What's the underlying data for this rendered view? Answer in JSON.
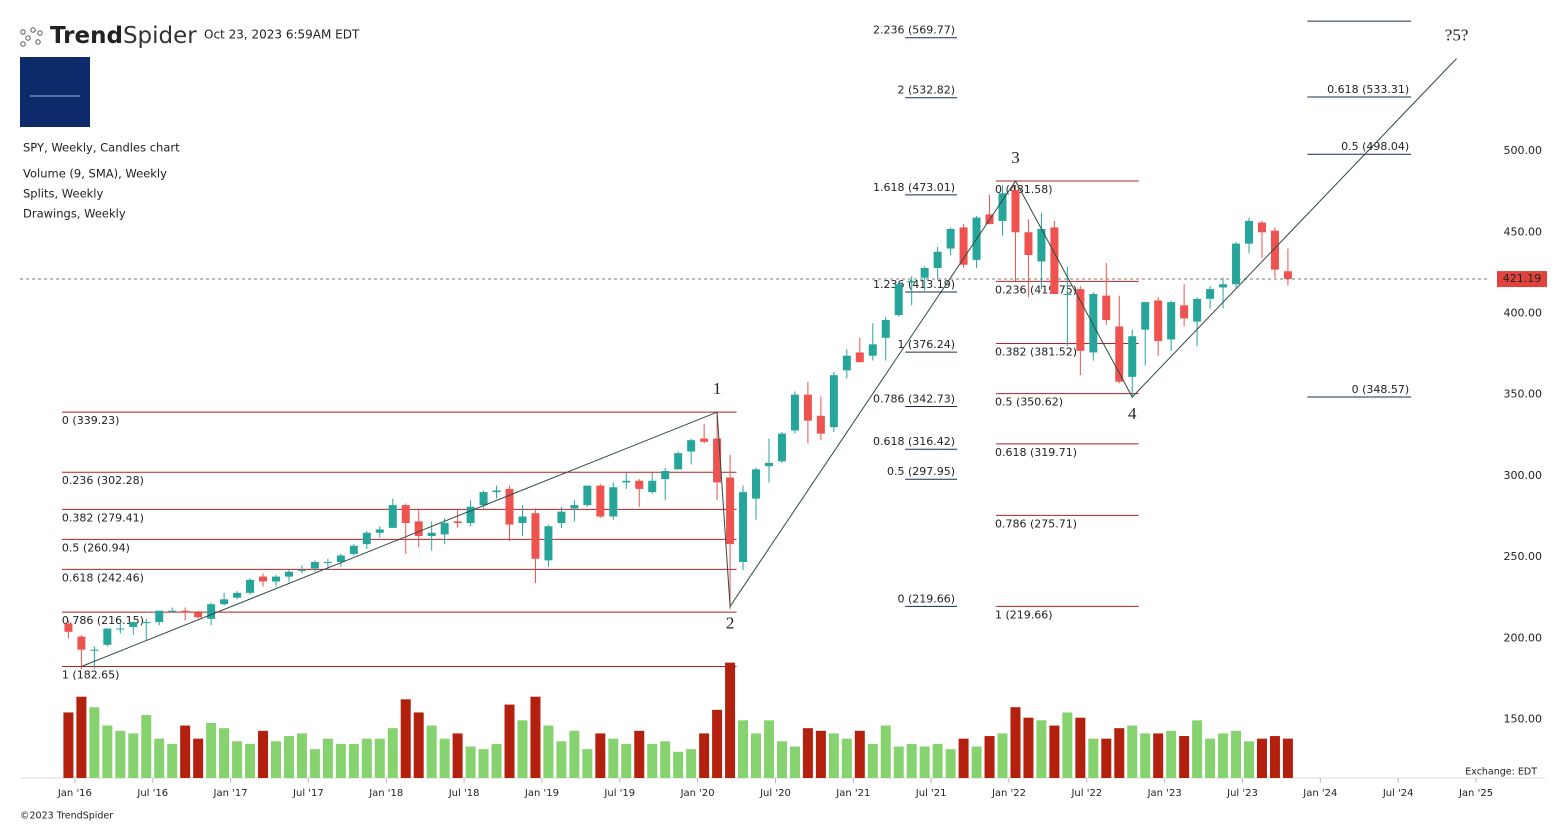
{
  "chart_data": {
    "type": "candlestick",
    "brand": [
      "Trend",
      "Spider"
    ],
    "timestamp": "Oct 23, 2023 6:59AM EDT",
    "title": "SPY, Weekly, Candles chart",
    "indicators": [
      "Volume (9, SMA), Weekly",
      "Splits, Weekly",
      "Drawings, Weekly"
    ],
    "exchange_note": "Exchange: EDT",
    "copyright": "©2023 TrendSpider",
    "up_color": "#26a69a",
    "down_color": "#ef5350",
    "volume_up_color": "#86d26e",
    "volume_down_color": "#b3200e",
    "x": [
      "2015-12",
      "2016-01",
      "2016-02",
      "2016-03",
      "2016-04",
      "2016-05",
      "2016-06",
      "2016-07",
      "2016-08",
      "2016-09",
      "2016-10",
      "2016-11",
      "2016-12",
      "2017-01",
      "2017-02",
      "2017-03",
      "2017-04",
      "2017-05",
      "2017-06",
      "2017-07",
      "2017-08",
      "2017-09",
      "2017-10",
      "2017-11",
      "2017-12",
      "2018-01",
      "2018-02",
      "2018-03",
      "2018-04",
      "2018-05",
      "2018-06",
      "2018-07",
      "2018-08",
      "2018-09",
      "2018-10",
      "2018-11",
      "2018-12",
      "2019-01",
      "2019-02",
      "2019-03",
      "2019-04",
      "2019-05",
      "2019-06",
      "2019-07",
      "2019-08",
      "2019-09",
      "2019-10",
      "2019-11",
      "2019-12",
      "2020-01",
      "2020-02",
      "2020-03",
      "2020-04",
      "2020-05",
      "2020-06",
      "2020-07",
      "2020-08",
      "2020-09",
      "2020-10",
      "2020-11",
      "2020-12",
      "2021-01",
      "2021-02",
      "2021-03",
      "2021-04",
      "2021-05",
      "2021-06",
      "2021-07",
      "2021-08",
      "2021-09",
      "2021-10",
      "2021-11",
      "2021-12",
      "2022-01",
      "2022-02",
      "2022-03",
      "2022-04",
      "2022-05",
      "2022-06",
      "2022-07",
      "2022-08",
      "2022-09",
      "2022-10",
      "2022-11",
      "2022-12",
      "2023-01",
      "2023-02",
      "2023-03",
      "2023-04",
      "2023-05",
      "2023-06",
      "2023-07",
      "2023-08",
      "2023-09",
      "2023-10"
    ],
    "open": [
      209,
      201,
      193,
      196,
      206,
      207,
      210,
      210,
      217,
      217,
      216,
      212,
      221,
      225,
      228,
      238,
      235,
      238,
      242,
      243,
      247,
      247,
      252,
      258,
      265,
      268,
      282,
      272,
      263,
      264,
      272,
      271,
      282,
      290,
      292,
      271,
      277,
      248,
      271,
      280,
      282,
      294,
      275,
      296,
      297,
      290,
      298,
      304,
      315,
      323,
      323,
      299,
      247,
      286,
      306,
      309,
      328,
      350,
      337,
      330,
      365,
      376,
      374,
      385,
      399,
      419,
      422,
      428,
      440,
      453,
      433,
      461,
      457,
      476,
      450,
      432,
      453,
      412,
      415,
      376,
      411,
      392,
      361,
      390,
      408,
      384,
      405,
      395,
      409,
      416,
      418,
      443,
      456,
      451,
      426
    ],
    "high": [
      211,
      202,
      195,
      206,
      210,
      210,
      212,
      217,
      219,
      219,
      217,
      222,
      228,
      229,
      237,
      240,
      239,
      242,
      245,
      248,
      249,
      252,
      258,
      266,
      269,
      286,
      283,
      279,
      272,
      274,
      279,
      285,
      291,
      294,
      294,
      282,
      280,
      270,
      281,
      285,
      294,
      295,
      296,
      302,
      298,
      302,
      305,
      315,
      323,
      332,
      339,
      313,
      294,
      305,
      323,
      327,
      352,
      358,
      349,
      364,
      378,
      385,
      394,
      398,
      420,
      423,
      429,
      441,
      453,
      455,
      460,
      473,
      479,
      479,
      458,
      462,
      457,
      429,
      417,
      413,
      431,
      411,
      390,
      407,
      410,
      408,
      418,
      410,
      417,
      422,
      444,
      459,
      457,
      453,
      440
    ],
    "low": [
      200,
      181,
      181,
      195,
      203,
      202,
      199,
      208,
      216,
      211,
      212,
      208,
      220,
      224,
      227,
      232,
      232,
      235,
      240,
      241,
      242,
      244,
      251,
      255,
      262,
      268,
      252,
      256,
      254,
      258,
      268,
      269,
      280,
      286,
      260,
      263,
      234,
      244,
      268,
      272,
      281,
      274,
      273,
      292,
      281,
      289,
      285,
      304,
      307,
      320,
      285,
      218,
      242,
      273,
      296,
      308,
      326,
      320,
      322,
      327,
      360,
      370,
      371,
      371,
      398,
      405,
      414,
      421,
      436,
      428,
      428,
      455,
      448,
      420,
      410,
      415,
      412,
      380,
      362,
      371,
      393,
      357,
      348,
      368,
      374,
      377,
      392,
      380,
      403,
      403,
      416,
      437,
      434,
      422,
      417
    ],
    "close": [
      204,
      193,
      193,
      206,
      206,
      210,
      210,
      217,
      217,
      216,
      213,
      221,
      224,
      228,
      236,
      235,
      238,
      241,
      242,
      247,
      247,
      251,
      257,
      265,
      267,
      282,
      271,
      263,
      265,
      271,
      271,
      281,
      290,
      291,
      270,
      275,
      249,
      269,
      278,
      282,
      294,
      275,
      293,
      297,
      292,
      297,
      303,
      314,
      322,
      321,
      296,
      258,
      290,
      304,
      308,
      326,
      350,
      334,
      326,
      362,
      374,
      370,
      381,
      396,
      418,
      420,
      428,
      438,
      452,
      430,
      459,
      455,
      474,
      450,
      436,
      452,
      412,
      412,
      377,
      412,
      396,
      358,
      386,
      407,
      383,
      407,
      397,
      409,
      415,
      418,
      443,
      457,
      450,
      427,
      421.19
    ],
    "volume": [
      2500,
      3100,
      2700,
      2000,
      1800,
      1700,
      2400,
      1500,
      1300,
      2000,
      1500,
      2100,
      1900,
      1400,
      1300,
      1800,
      1400,
      1600,
      1700,
      1100,
      1500,
      1300,
      1300,
      1500,
      1500,
      1900,
      3000,
      2500,
      2000,
      1500,
      1700,
      1200,
      1100,
      1300,
      2800,
      2200,
      3100,
      2000,
      1400,
      1800,
      1100,
      1700,
      1500,
      1300,
      1800,
      1300,
      1400,
      1000,
      1100,
      1700,
      2600,
      4400,
      2200,
      1700,
      2200,
      1400,
      1200,
      1900,
      1800,
      1700,
      1500,
      1800,
      1300,
      2000,
      1200,
      1300,
      1200,
      1300,
      1100,
      1500,
      1200,
      1600,
      1700,
      2700,
      2300,
      2200,
      2000,
      2500,
      2300,
      1500,
      1500,
      1900,
      2000,
      1700,
      1700,
      1800,
      1600,
      2200,
      1500,
      1700,
      1800,
      1400,
      1500,
      1600,
      1500
    ],
    "volume_lim": [
      0,
      4500
    ],
    "xlim": [
      "2015-09",
      "2025-02"
    ],
    "xticks": [
      {
        "value": "2016-01",
        "label": "Jan '16"
      },
      {
        "value": "2016-07",
        "label": "Jul '16"
      },
      {
        "value": "2017-01",
        "label": "Jan '17"
      },
      {
        "value": "2017-07",
        "label": "Jul '17"
      },
      {
        "value": "2018-01",
        "label": "Jan '18"
      },
      {
        "value": "2018-07",
        "label": "Jul '18"
      },
      {
        "value": "2019-01",
        "label": "Jan '19"
      },
      {
        "value": "2019-07",
        "label": "Jul '19"
      },
      {
        "value": "2020-01",
        "label": "Jan '20"
      },
      {
        "value": "2020-07",
        "label": "Jul '20"
      },
      {
        "value": "2021-01",
        "label": "Jan '21"
      },
      {
        "value": "2021-07",
        "label": "Jul '21"
      },
      {
        "value": "2022-01",
        "label": "Jan '22"
      },
      {
        "value": "2022-07",
        "label": "Jul '22"
      },
      {
        "value": "2023-01",
        "label": "Jan '23"
      },
      {
        "value": "2023-07",
        "label": "Jul '23"
      },
      {
        "value": "2024-01",
        "label": "Jan '24"
      },
      {
        "value": "2024-07",
        "label": "Jul '24"
      },
      {
        "value": "2025-01",
        "label": "Jan '25"
      }
    ],
    "ylim": [
      114,
      593
    ],
    "yticks": [
      {
        "value": 150,
        "label": "150.00"
      },
      {
        "value": 200,
        "label": "200.00"
      },
      {
        "value": 250,
        "label": "250.00"
      },
      {
        "value": 300,
        "label": "300.00"
      },
      {
        "value": 350,
        "label": "350.00"
      },
      {
        "value": 400,
        "label": "400.00"
      },
      {
        "value": 450,
        "label": "450.00"
      },
      {
        "value": 500,
        "label": "500.00"
      }
    ],
    "last_price": 421.19,
    "last_price_color": "#e0433c",
    "fib_groups": [
      {
        "color": "#b22222",
        "x_from": "2015-12",
        "x_to": "2020-04",
        "levels": [
          {
            "label": "0 (339.23)",
            "price": 339.23
          },
          {
            "label": "0.236 (302.28)",
            "price": 302.28
          },
          {
            "label": "0.382 (279.41)",
            "price": 279.41
          },
          {
            "label": "0.5 (260.94)",
            "price": 260.94
          },
          {
            "label": "0.618 (242.46)",
            "price": 242.46
          },
          {
            "label": "0.786 (216.15)",
            "price": 216.15
          },
          {
            "label": "1 (182.65)",
            "price": 182.65
          }
        ]
      },
      {
        "color": "#1c2b4a",
        "x_from": "2021-05",
        "x_to": "2021-09",
        "levels": [
          {
            "label": "2.236 (569.77)",
            "price": 569.77
          },
          {
            "label": "2 (532.82)",
            "price": 532.82
          },
          {
            "label": "1.618 (473.01)",
            "price": 473.01
          },
          {
            "label": "1.236 (413.19)",
            "price": 413.19
          },
          {
            "label": "1 (376.24)",
            "price": 376.24
          },
          {
            "label": "0.786 (342.73)",
            "price": 342.73
          },
          {
            "label": "0.618 (316.42)",
            "price": 316.42
          },
          {
            "label": "0.5 (297.95)",
            "price": 297.95
          },
          {
            "label": "0 (219.66)",
            "price": 219.66
          }
        ]
      },
      {
        "color": "#b22222",
        "x_from": "2021-12",
        "x_to": "2022-11",
        "levels": [
          {
            "label": "0 (481.58)",
            "price": 481.58
          },
          {
            "label": "0.236 (419.75)",
            "price": 419.75
          },
          {
            "label": "0.382 (381.52)",
            "price": 381.52
          },
          {
            "label": "0.5 (350.62)",
            "price": 350.62
          },
          {
            "label": "0.618 (319.71)",
            "price": 319.71
          },
          {
            "label": "0.786 (275.71)",
            "price": 275.71
          },
          {
            "label": "1 (219.66)",
            "price": 219.66
          }
        ]
      },
      {
        "color": "#1c2b4a",
        "x_from": "2023-12",
        "x_to": "2024-08",
        "levels": [
          {
            "price": 580
          },
          {
            "label": "0.618 (533.31)",
            "price": 533.31
          },
          {
            "label": "0.5 (498.04)",
            "price": 498.04
          },
          {
            "label": "0 (348.57)",
            "price": 348.57
          }
        ]
      }
    ],
    "waves": {
      "color": "#2f4a44",
      "labels": [
        null,
        "1",
        "2",
        "3",
        "4",
        "?5?"
      ],
      "x": [
        "2016-01",
        "2020-02",
        "2020-03",
        "2022-01",
        "2022-10",
        "2024-11"
      ],
      "y": [
        182.65,
        339.23,
        219.66,
        481.58,
        348.57,
        557
      ]
    }
  }
}
